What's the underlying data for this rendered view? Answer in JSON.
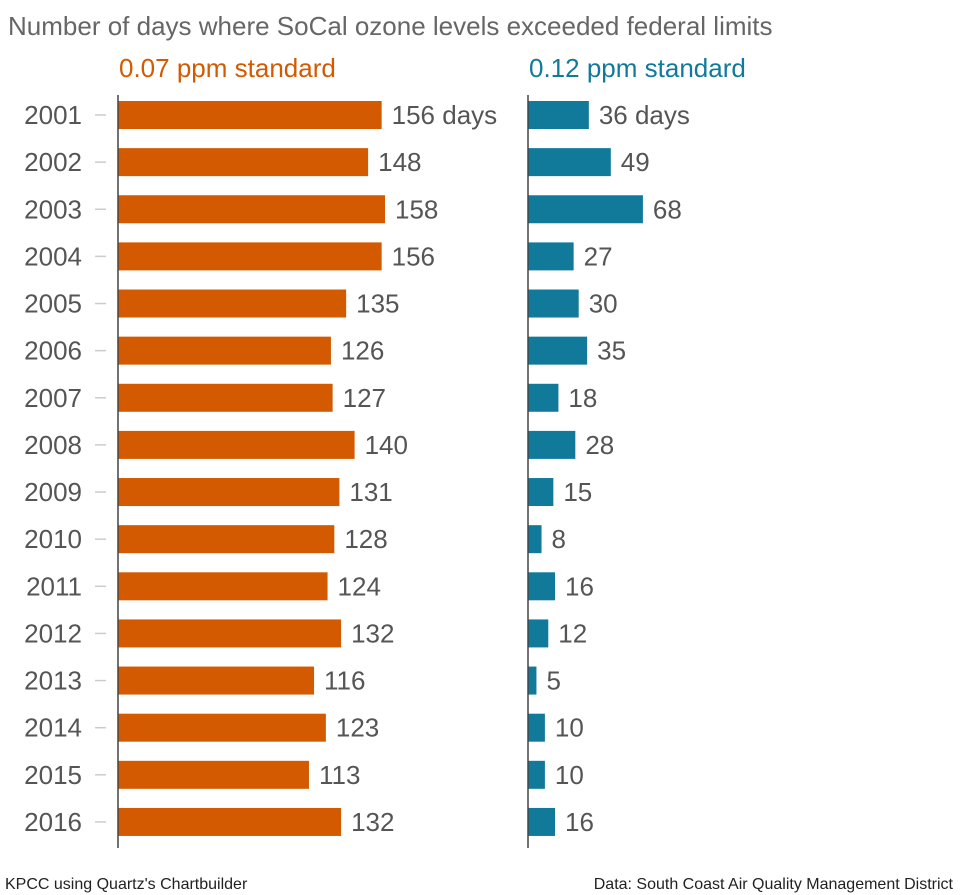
{
  "chart_data": {
    "type": "bar",
    "orientation": "horizontal",
    "title": "Number of days where SoCal ozone levels exceeded federal limits",
    "categories": [
      "2001",
      "2002",
      "2003",
      "2004",
      "2005",
      "2006",
      "2007",
      "2008",
      "2009",
      "2010",
      "2011",
      "2012",
      "2013",
      "2014",
      "2015",
      "2016"
    ],
    "series": [
      {
        "name": "0.07 ppm standard",
        "color": "#d35a00",
        "values": [
          156,
          148,
          158,
          156,
          135,
          126,
          127,
          140,
          131,
          128,
          124,
          132,
          116,
          123,
          113,
          132
        ],
        "first_label_suffix": " days"
      },
      {
        "name": "0.12 ppm standard",
        "color": "#117a9b",
        "values": [
          36,
          49,
          68,
          27,
          30,
          35,
          18,
          28,
          15,
          8,
          16,
          12,
          5,
          10,
          10,
          16
        ],
        "first_label_suffix": " days"
      }
    ],
    "grid": false,
    "legend": "panel titles above each panel"
  },
  "footer": {
    "credit": "KPCC using Quartz's Chartbuilder",
    "source": "Data: South Coast Air Quality Management District"
  }
}
